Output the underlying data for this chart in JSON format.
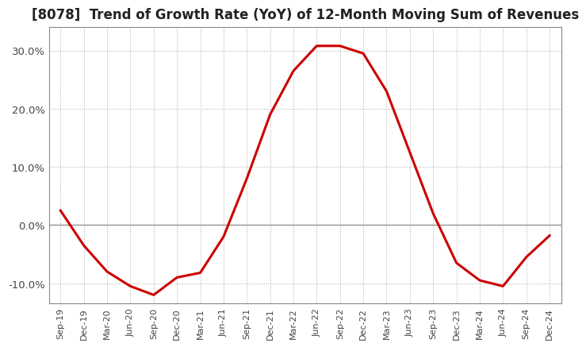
{
  "title": "[8078]  Trend of Growth Rate (YoY) of 12-Month Moving Sum of Revenues",
  "title_fontsize": 12,
  "line_color": "#cc0000",
  "background_color": "#ffffff",
  "grid_color": "#aaaaaa",
  "zero_line_color": "#888888",
  "border_color": "#888888",
  "ylim": [
    -0.135,
    0.34
  ],
  "yticks": [
    -0.1,
    0.0,
    0.1,
    0.2,
    0.3
  ],
  "ytick_labels": [
    "-10.0%",
    "0.0%",
    "10.0%",
    "20.0%",
    "30.0%"
  ],
  "x_labels": [
    "Sep-19",
    "Dec-19",
    "Mar-20",
    "Jun-20",
    "Sep-20",
    "Dec-20",
    "Mar-21",
    "Jun-21",
    "Sep-21",
    "Dec-21",
    "Mar-22",
    "Jun-22",
    "Sep-22",
    "Dec-22",
    "Mar-23",
    "Jun-23",
    "Sep-23",
    "Dec-23",
    "Mar-24",
    "Jun-24",
    "Sep-24",
    "Dec-24"
  ],
  "data_x": [
    0,
    1,
    2,
    3,
    4,
    5,
    6,
    7,
    8,
    9,
    10,
    11,
    12,
    13,
    14,
    15,
    16,
    17,
    18,
    19,
    20,
    21
  ],
  "data_y": [
    0.025,
    -0.035,
    -0.08,
    -0.105,
    -0.12,
    -0.09,
    -0.082,
    -0.02,
    0.08,
    0.19,
    0.265,
    0.308,
    0.308,
    0.295,
    0.23,
    0.125,
    0.02,
    -0.065,
    -0.095,
    -0.105,
    -0.055,
    -0.018
  ]
}
